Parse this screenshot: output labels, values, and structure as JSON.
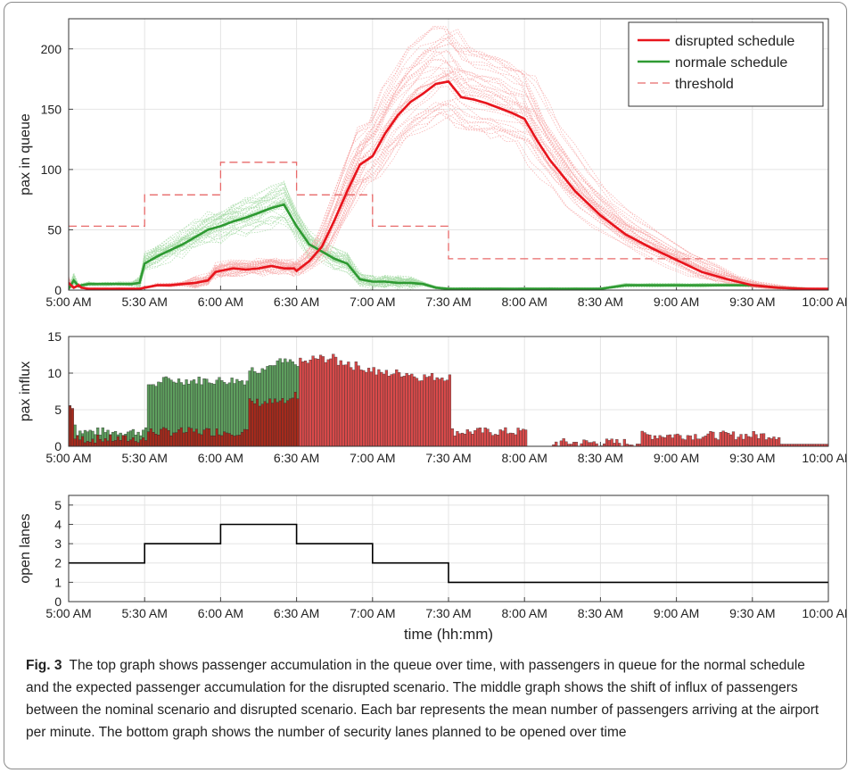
{
  "caption": {
    "label": "Fig. 3",
    "text": "The top graph shows passenger accumulation in the queue over time, with passengers in queue for the normal schedule and the expected passenger accumulation for the disrupted scenario. The middle graph shows the shift of influx of passengers between the nominal scenario and disrupted scenario. Each bar represents the mean number of passengers arriving at the airport per minute. The bottom graph shows the number of security lanes planned to be opened over time"
  },
  "colors": {
    "disrupted": "#e8141c",
    "normal": "#2e9a32",
    "threshold": "#e86a6a",
    "disrupted_faint": "#f7a8a8",
    "normal_faint": "#a8dca8",
    "bar_green": "#5e9e5e",
    "bar_red": "#d84a4a",
    "bar_dark": "#a52a1c",
    "lanes": "#000000"
  },
  "chart_data": [
    {
      "type": "line",
      "xlabel": "",
      "ylabel": "pax in queue",
      "x_ticks": [
        "5:00 AM",
        "5:30 AM",
        "6:00 AM",
        "6:30 AM",
        "7:00 AM",
        "7:30 AM",
        "8:00 AM",
        "8:30 AM",
        "9:00 AM",
        "9:30 AM",
        "10:00 AM"
      ],
      "y_ticks": [
        "0",
        "50",
        "100",
        "150",
        "200"
      ],
      "xlim": [
        0,
        300
      ],
      "ylim": [
        0,
        225
      ],
      "legend": {
        "position": "top-right"
      },
      "series": [
        {
          "name": "disrupted schedule",
          "style": "solid",
          "x": [
            0,
            2,
            4,
            5,
            8,
            10,
            15,
            20,
            25,
            28,
            30,
            35,
            40,
            45,
            50,
            55,
            58,
            60,
            65,
            70,
            75,
            80,
            85,
            89,
            90,
            95,
            100,
            105,
            110,
            115,
            120,
            125,
            130,
            135,
            140,
            145,
            150,
            155,
            160,
            165,
            170,
            175,
            180,
            185,
            190,
            195,
            200,
            210,
            220,
            230,
            240,
            250,
            260,
            270,
            280,
            290,
            300
          ],
          "y": [
            6,
            2,
            4,
            2,
            1,
            1,
            1,
            1,
            1,
            1,
            2,
            4,
            4,
            5,
            6,
            8,
            15,
            16,
            18,
            17,
            18,
            20,
            18,
            18,
            16,
            24,
            36,
            58,
            82,
            104,
            111,
            130,
            145,
            156,
            163,
            171,
            173,
            160,
            158,
            155,
            151,
            147,
            142,
            124,
            108,
            95,
            82,
            62,
            46,
            35,
            25,
            15,
            9,
            4,
            2,
            1,
            1
          ]
        },
        {
          "name": "normale schedule",
          "style": "solid",
          "x": [
            0,
            2,
            4,
            5,
            8,
            10,
            15,
            20,
            25,
            28,
            30,
            35,
            40,
            45,
            50,
            55,
            60,
            65,
            70,
            75,
            80,
            85,
            90,
            95,
            100,
            105,
            110,
            115,
            120,
            125,
            130,
            135,
            140,
            145,
            150,
            155,
            160,
            170,
            180,
            190,
            200,
            210,
            220,
            230,
            240,
            250,
            260,
            270,
            280,
            290,
            300
          ],
          "y": [
            1,
            8,
            3,
            4,
            5,
            5,
            5,
            5,
            5,
            6,
            22,
            28,
            33,
            38,
            44,
            50,
            53,
            57,
            60,
            64,
            68,
            71,
            53,
            38,
            32,
            26,
            22,
            9,
            7,
            7,
            6,
            6,
            5,
            2,
            1,
            1,
            1,
            1,
            1,
            1,
            1,
            1,
            4,
            4,
            4,
            4,
            4,
            4,
            2,
            1,
            0
          ]
        },
        {
          "name": "threshold",
          "style": "dashed",
          "x": [
            0,
            30,
            30,
            60,
            60,
            90,
            90,
            120,
            120,
            150,
            150,
            300
          ],
          "y": [
            53,
            53,
            79,
            79,
            106,
            106,
            79,
            79,
            53,
            53,
            26,
            26
          ]
        }
      ]
    },
    {
      "type": "bar",
      "xlabel": "",
      "ylabel": "pax influx",
      "x_ticks": [
        "5:00 AM",
        "5:30 AM",
        "6:00 AM",
        "6:30 AM",
        "7:00 AM",
        "7:30 AM",
        "8:00 AM",
        "8:30 AM",
        "9:00 AM",
        "9:30 AM",
        "10:00 AM"
      ],
      "y_ticks": [
        "0",
        "5",
        "10",
        "15"
      ],
      "xlim": [
        0,
        300
      ],
      "ylim": [
        0,
        15
      ],
      "series": [
        {
          "name": "normal",
          "x": [
            0,
            1,
            2,
            5,
            10,
            15,
            20,
            25,
            28,
            30,
            35,
            40,
            45,
            50,
            55,
            60,
            65,
            70,
            75,
            80,
            85,
            88,
            89,
            90,
            95,
            100,
            105,
            110,
            115,
            120,
            125,
            130,
            135,
            140,
            145,
            150,
            155,
            160,
            165,
            170,
            175,
            180,
            185,
            190,
            195,
            200,
            205,
            210,
            215,
            220,
            225,
            230,
            235,
            240,
            245,
            250,
            255,
            260,
            265,
            270,
            275,
            280,
            285,
            290,
            295,
            300
          ],
          "y": [
            5.5,
            3,
            2,
            2,
            2,
            2,
            2,
            2,
            2,
            8.5,
            9,
            9,
            9,
            9,
            9,
            9,
            9,
            10.5,
            11,
            11.5,
            11.5,
            11,
            11,
            0,
            0,
            0,
            0,
            0,
            0,
            0,
            0,
            0,
            0,
            0,
            0,
            0,
            0,
            0,
            0,
            0,
            0,
            0,
            0,
            0,
            0,
            0,
            0,
            0,
            0,
            0,
            0,
            0,
            0,
            0,
            0,
            0,
            0,
            0,
            0,
            0,
            0,
            0,
            0,
            0,
            0,
            0
          ]
        },
        {
          "name": "disrupted",
          "x": [
            0,
            1,
            2,
            5,
            10,
            15,
            20,
            25,
            28,
            30,
            35,
            40,
            45,
            50,
            55,
            60,
            65,
            70,
            75,
            80,
            85,
            88,
            89,
            90,
            95,
            100,
            105,
            110,
            115,
            120,
            125,
            130,
            135,
            140,
            145,
            150,
            155,
            160,
            165,
            170,
            175,
            180,
            185,
            190,
            195,
            200,
            205,
            210,
            215,
            220,
            225,
            230,
            235,
            240,
            245,
            250,
            255,
            260,
            265,
            270,
            275,
            280,
            285,
            290,
            295,
            300
          ],
          "y": [
            5.5,
            1,
            1,
            1,
            1,
            1,
            1,
            1,
            1,
            2,
            2,
            2,
            2,
            2,
            2,
            2,
            2,
            6,
            6,
            6,
            6,
            7,
            7,
            11.5,
            12,
            12,
            11.5,
            11,
            10.5,
            10,
            10,
            10,
            9.5,
            9.5,
            9.5,
            2,
            2,
            2,
            2,
            2,
            2,
            0,
            0,
            0.5,
            0.5,
            0.5,
            0.5,
            0.5,
            0.5,
            0.5,
            1.5,
            1.5,
            1.5,
            1.5,
            1.5,
            1.5,
            1.5,
            1.5,
            1.5,
            1.5,
            1.5,
            0.3,
            0.3,
            0.3,
            0.3,
            0
          ]
        }
      ]
    },
    {
      "type": "line",
      "xlabel": "time (hh:mm)",
      "ylabel": "open lanes",
      "x_ticks": [
        "5:00 AM",
        "5:30 AM",
        "6:00 AM",
        "6:30 AM",
        "7:00 AM",
        "7:30 AM",
        "8:00 AM",
        "8:30 AM",
        "9:00 AM",
        "9:30 AM",
        "10:00 AM"
      ],
      "y_ticks": [
        "0",
        "1",
        "2",
        "3",
        "4",
        "5"
      ],
      "xlim": [
        0,
        300
      ],
      "ylim": [
        0,
        5.5
      ],
      "series": [
        {
          "name": "",
          "x": [
            0,
            30,
            30,
            60,
            60,
            90,
            90,
            120,
            120,
            150,
            150,
            300
          ],
          "y": [
            2,
            2,
            3,
            3,
            4,
            4,
            3,
            3,
            2,
            2,
            1,
            1
          ]
        }
      ]
    }
  ]
}
